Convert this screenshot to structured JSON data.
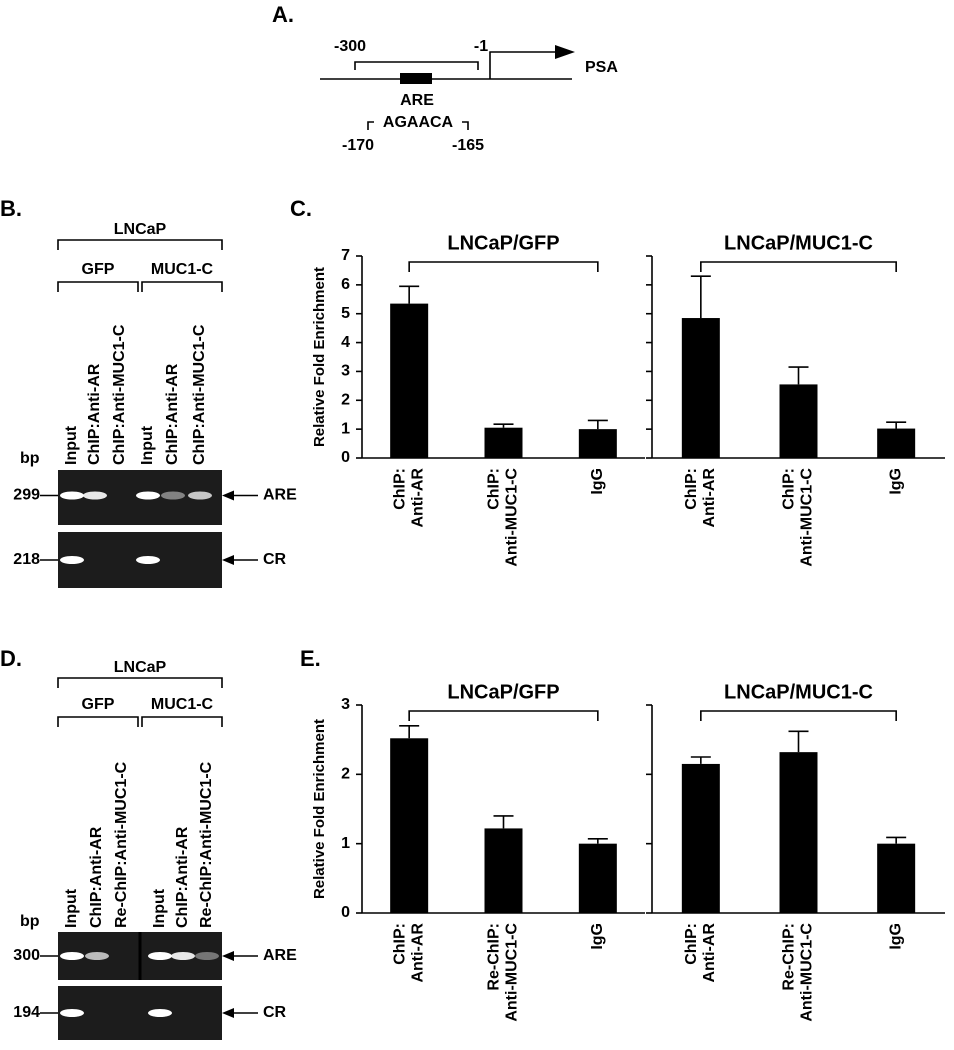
{
  "panel_a": {
    "label": "A.",
    "start": -300,
    "end": -1,
    "gene": "PSA",
    "element": "ARE",
    "sequence": "AGAACA",
    "seq_start": -170,
    "seq_end": -165
  },
  "panel_b": {
    "label": "B.",
    "group": "LNCaP",
    "subgroups": [
      "GFP",
      "MUC1-C"
    ],
    "lanes": [
      "Input",
      "ChIP:Anti-AR",
      "ChIP:Anti-MUC1-C",
      "Input",
      "ChIP:Anti-AR",
      "ChIP:Anti-MUC1-C"
    ],
    "bp_label": "bp",
    "rows": [
      {
        "bp": 299,
        "target": "ARE"
      },
      {
        "bp": 218,
        "target": "CR"
      }
    ]
  },
  "panel_d": {
    "label": "D.",
    "group": "LNCaP",
    "subgroups": [
      "GFP",
      "MUC1-C"
    ],
    "lanes": [
      "Input",
      "ChIP:Anti-AR",
      "Re-ChIP:Anti-MUC1-C",
      "Input",
      "ChIP:Anti-AR",
      "Re-ChIP:Anti-MUC1-C"
    ],
    "bp_label": "bp",
    "rows": [
      {
        "bp": 300,
        "target": "ARE"
      },
      {
        "bp": 194,
        "target": "CR"
      }
    ]
  },
  "figure_labels": {
    "c": "C.",
    "e": "E."
  },
  "chart_data": [
    {
      "type": "bar",
      "title": "LNCaP/GFP",
      "ylabel": "Relative Fold Enrichment",
      "categories": [
        [
          "ChIP:",
          "Anti-AR"
        ],
        [
          "ChIP:",
          "Anti-MUC1-C"
        ],
        [
          "IgG"
        ]
      ],
      "values": [
        5.35,
        1.05,
        1.0
      ],
      "errors": [
        0.6,
        0.12,
        0.3
      ],
      "color": "#000000",
      "ylim": [
        0,
        7
      ],
      "yticks": [
        0,
        1,
        2,
        3,
        4,
        5,
        6,
        7
      ],
      "tick_labels": true
    },
    {
      "type": "bar",
      "title": "LNCaP/MUC1-C",
      "categories": [
        [
          "ChIP:",
          "Anti-AR"
        ],
        [
          "ChIP:",
          "Anti-MUC1-C"
        ],
        [
          "IgG"
        ]
      ],
      "values": [
        4.85,
        2.55,
        1.02
      ],
      "errors": [
        1.45,
        0.6,
        0.22
      ],
      "color": "#000000",
      "ylim": [
        0,
        7
      ],
      "yticks": [
        0,
        1,
        2,
        3,
        4,
        5,
        6,
        7
      ],
      "tick_labels": false
    },
    {
      "type": "bar",
      "title": "LNCaP/GFP",
      "ylabel": "Relative Fold Enrichment",
      "categories": [
        [
          "ChIP:",
          "Anti-AR"
        ],
        [
          "Re-ChIP:",
          "Anti-MUC1-C"
        ],
        [
          "IgG"
        ]
      ],
      "values": [
        2.52,
        1.22,
        1.0
      ],
      "errors": [
        0.18,
        0.18,
        0.07
      ],
      "color": "#000000",
      "ylim": [
        0,
        3
      ],
      "yticks": [
        0,
        1,
        2,
        3
      ],
      "tick_labels": true
    },
    {
      "type": "bar",
      "title": "LNCaP/MUC1-C",
      "categories": [
        [
          "ChIP:",
          "Anti-AR"
        ],
        [
          "Re-ChIP:",
          "Anti-MUC1-C"
        ],
        [
          "IgG"
        ]
      ],
      "values": [
        2.15,
        2.32,
        1.0
      ],
      "errors": [
        0.1,
        0.3,
        0.09
      ],
      "color": "#000000",
      "ylim": [
        0,
        3
      ],
      "yticks": [
        0,
        1,
        2,
        3
      ],
      "tick_labels": false
    }
  ]
}
